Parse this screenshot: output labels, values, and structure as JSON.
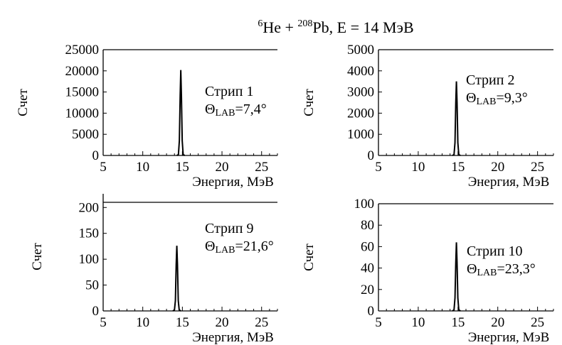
{
  "title": {
    "a1": "6",
    "a2": "He + ",
    "b1": "208",
    "b2": "Pb,   E = 14 МэВ"
  },
  "chart_data": [
    {
      "type": "line",
      "xlabel": "Энергия, МэВ",
      "ylabel": "Счет",
      "xlim": [
        5,
        27
      ],
      "ylim": [
        0,
        25000
      ],
      "xticks": [
        5,
        10,
        15,
        20,
        25
      ],
      "yticks": [
        0,
        5000,
        10000,
        15000,
        20000,
        25000
      ],
      "strip": "Стрип 1",
      "theta_sym": "Θ",
      "theta_sub": "LAB",
      "theta_val": "=7,4°",
      "series": [
        {
          "x": [
            14.3,
            14.5,
            14.62,
            14.72,
            14.8,
            14.88,
            14.98,
            15.1,
            15.3
          ],
          "values": [
            0,
            200,
            3500,
            14000,
            20200,
            14000,
            3500,
            200,
            0
          ]
        }
      ]
    },
    {
      "type": "line",
      "xlabel": "Энергия, МэВ",
      "ylabel": "Счет",
      "xlim": [
        5,
        27
      ],
      "ylim": [
        0,
        5000
      ],
      "xticks": [
        5,
        10,
        15,
        20,
        25
      ],
      "yticks": [
        0,
        1000,
        2000,
        3000,
        4000,
        5000
      ],
      "strip": "Стрип 2",
      "theta_sym": "Θ",
      "theta_sub": "LAB",
      "theta_val": "=9,3°",
      "series": [
        {
          "x": [
            14.3,
            14.5,
            14.62,
            14.72,
            14.8,
            14.88,
            14.98,
            15.1,
            15.3
          ],
          "values": [
            0,
            40,
            600,
            2500,
            3500,
            2500,
            600,
            40,
            0
          ]
        }
      ]
    },
    {
      "type": "line",
      "xlabel": "Энергия, МэВ",
      "ylabel": "Счет",
      "xlim": [
        5,
        27
      ],
      "ylim": [
        0,
        210
      ],
      "xticks": [
        5,
        10,
        15,
        20,
        25
      ],
      "yticks": [
        0,
        50,
        100,
        150,
        200
      ],
      "strip": "Стрип 9",
      "theta_sym": "Θ",
      "theta_sub": "LAB",
      "theta_val": "=21,6°",
      "series": [
        {
          "x": [
            13.8,
            14.0,
            14.12,
            14.22,
            14.3,
            14.38,
            14.48,
            14.6,
            14.8
          ],
          "values": [
            0,
            2,
            20,
            90,
            126,
            90,
            20,
            2,
            0
          ]
        }
      ]
    },
    {
      "type": "line",
      "xlabel": "Энергия, МэВ",
      "ylabel": "Счет",
      "xlim": [
        5,
        27
      ],
      "ylim": [
        0,
        100
      ],
      "xticks": [
        5,
        10,
        15,
        20,
        25
      ],
      "yticks": [
        0,
        20,
        40,
        60,
        80,
        100
      ],
      "strip": "Стрип 10",
      "theta_sym": "Θ",
      "theta_sub": "LAB",
      "theta_val": "=23,3°",
      "series": [
        {
          "x": [
            14.3,
            14.5,
            14.62,
            14.72,
            14.8,
            14.88,
            14.98,
            15.1,
            15.3
          ],
          "values": [
            0,
            1,
            12,
            45,
            64,
            45,
            12,
            1,
            0
          ]
        }
      ]
    }
  ]
}
